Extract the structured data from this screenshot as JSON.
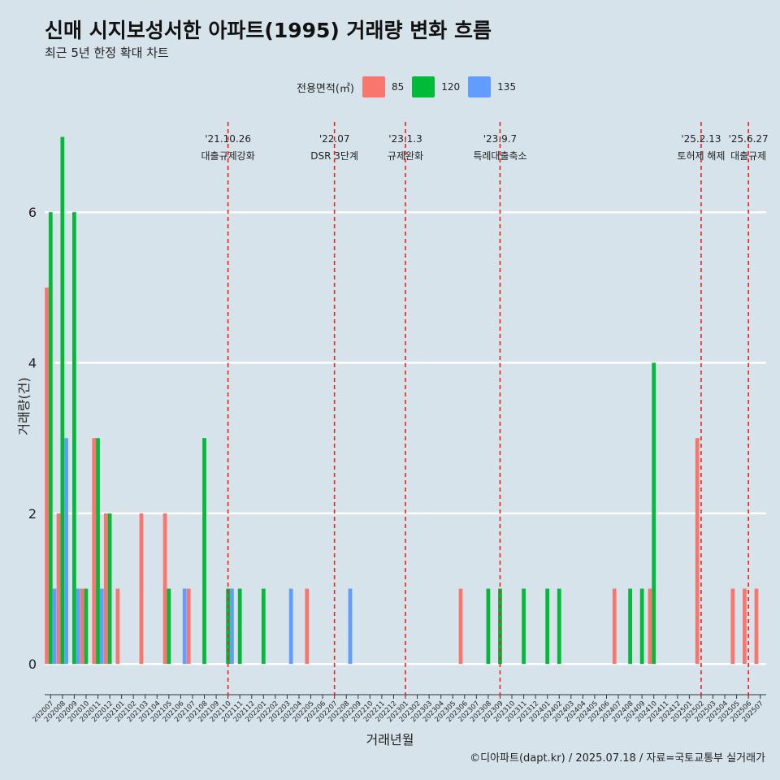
{
  "title": "신매 시지보성서한 아파트(1995) 거래량 변화 흐름",
  "subtitle": "최근 5년 한정 확대 차트",
  "caption": "©디아파트(dapt.kr) / 2025.07.18 / 자료=국토교통부 실거래가",
  "legend": {
    "title": "전용면적(㎡)",
    "items": [
      {
        "label": "85",
        "color": "#f8766d"
      },
      {
        "label": "120",
        "color": "#00ba38"
      },
      {
        "label": "135",
        "color": "#619cff"
      }
    ]
  },
  "chart_data": {
    "type": "bar",
    "xlabel": "거래년월",
    "ylabel": "거래량(건)",
    "ylim": [
      -0.3,
      7.2
    ],
    "yticks": [
      0,
      2,
      4,
      6
    ],
    "grid": true,
    "legend_position": "top",
    "categories": [
      "202007",
      "202008",
      "202009",
      "202010",
      "202011",
      "202012",
      "202101",
      "202102",
      "202103",
      "202104",
      "202105",
      "202106",
      "202107",
      "202108",
      "202109",
      "202110",
      "202111",
      "202112",
      "202201",
      "202202",
      "202203",
      "202204",
      "202205",
      "202206",
      "202207",
      "202208",
      "202209",
      "202210",
      "202211",
      "202212",
      "202301",
      "202302",
      "202303",
      "202304",
      "202305",
      "202306",
      "202307",
      "202308",
      "202309",
      "202310",
      "202311",
      "202312",
      "202401",
      "202402",
      "202403",
      "202404",
      "202405",
      "202406",
      "202407",
      "202408",
      "202409",
      "202410",
      "202411",
      "202412",
      "202501",
      "202502",
      "202503",
      "202504",
      "202505",
      "202506",
      "202507"
    ],
    "series": [
      {
        "name": "85",
        "color": "#f8766d",
        "values": [
          5,
          2,
          0,
          1,
          3,
          2,
          1,
          0,
          2,
          0,
          2,
          0,
          1,
          0,
          0,
          0,
          0,
          0,
          0,
          0,
          0,
          0,
          1,
          0,
          0,
          0,
          0,
          0,
          0,
          0,
          0,
          0,
          0,
          0,
          0,
          1,
          0,
          0,
          0,
          0,
          0,
          0,
          0,
          0,
          0,
          0,
          0,
          0,
          1,
          0,
          0,
          1,
          0,
          0,
          0,
          3,
          0,
          0,
          1,
          1,
          1
        ]
      },
      {
        "name": "120",
        "color": "#00ba38",
        "values": [
          6,
          7,
          6,
          1,
          3,
          2,
          0,
          0,
          0,
          0,
          1,
          0,
          0,
          3,
          0,
          1,
          1,
          0,
          1,
          0,
          0,
          0,
          0,
          0,
          0,
          0,
          0,
          0,
          0,
          0,
          0,
          0,
          0,
          0,
          0,
          0,
          0,
          1,
          1,
          0,
          1,
          0,
          1,
          1,
          0,
          0,
          0,
          0,
          0,
          1,
          1,
          4,
          0,
          0,
          0,
          0,
          0,
          0,
          0,
          0,
          0
        ]
      },
      {
        "name": "135",
        "color": "#619cff",
        "values": [
          1,
          3,
          1,
          0,
          1,
          0,
          0,
          0,
          0,
          0,
          0,
          1,
          0,
          0,
          0,
          1,
          0,
          0,
          0,
          0,
          1,
          0,
          0,
          0,
          0,
          1,
          0,
          0,
          0,
          0,
          0,
          0,
          0,
          0,
          0,
          0,
          0,
          0,
          0,
          0,
          0,
          0,
          0,
          0,
          0,
          0,
          0,
          0,
          0,
          0,
          0,
          0,
          0,
          0,
          0,
          0,
          0,
          0,
          0,
          0,
          0
        ]
      }
    ],
    "events": [
      {
        "x": "202110",
        "date": "'21.10.26",
        "label": "대출규제강화"
      },
      {
        "x": "202207",
        "date": "'22.07",
        "label": "DSR 3단계"
      },
      {
        "x": "202301",
        "date": "'23.1.3",
        "label": "규제완화"
      },
      {
        "x": "202309",
        "date": "'23.9.7",
        "label": "특례대출축소"
      },
      {
        "x": "202502",
        "date": "'25.2.13",
        "label": "토허제 해제"
      },
      {
        "x": "202506",
        "date": "'25.6.27",
        "label": "대출규제"
      }
    ]
  }
}
